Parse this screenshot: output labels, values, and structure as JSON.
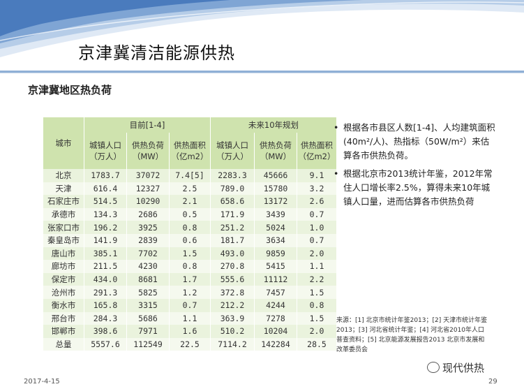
{
  "slide": {
    "title": "京津冀清洁能源供热",
    "subtitle": "京津冀地区热负荷",
    "footer_date": "2017-4-15",
    "page_number": "29",
    "watermark": "现代供热"
  },
  "table": {
    "group_current": "目前[1-4]",
    "group_future": "未来10年规划",
    "col_city": "城市",
    "col_pop": "城镇人口（万人）",
    "col_load": "供热负荷（MW）",
    "col_area": "供热面积（亿m2）",
    "rows": [
      {
        "city": "北京",
        "pop": "1783.7",
        "load": "37072",
        "area": "7.4[5]",
        "fpop": "2283.3",
        "fload": "45666",
        "farea": "9.1"
      },
      {
        "city": "天津",
        "pop": "616.4",
        "load": "12327",
        "area": "2.5",
        "fpop": "789.0",
        "fload": "15780",
        "farea": "3.2"
      },
      {
        "city": "石家庄市",
        "pop": "514.5",
        "load": "10290",
        "area": "2.1",
        "fpop": "658.6",
        "fload": "13172",
        "farea": "2.6"
      },
      {
        "city": "承德市",
        "pop": "134.3",
        "load": "2686",
        "area": "0.5",
        "fpop": "171.9",
        "fload": "3439",
        "farea": "0.7"
      },
      {
        "city": "张家口市",
        "pop": "196.2",
        "load": "3925",
        "area": "0.8",
        "fpop": "251.2",
        "fload": "5024",
        "farea": "1.0"
      },
      {
        "city": "秦皇岛市",
        "pop": "141.9",
        "load": "2839",
        "area": "0.6",
        "fpop": "181.7",
        "fload": "3634",
        "farea": "0.7"
      },
      {
        "city": "唐山市",
        "pop": "385.1",
        "load": "7702",
        "area": "1.5",
        "fpop": "493.0",
        "fload": "9859",
        "farea": "2.0"
      },
      {
        "city": "廊坊市",
        "pop": "211.5",
        "load": "4230",
        "area": "0.8",
        "fpop": "270.8",
        "fload": "5415",
        "farea": "1.1"
      },
      {
        "city": "保定市",
        "pop": "434.0",
        "load": "8681",
        "area": "1.7",
        "fpop": "555.6",
        "fload": "11112",
        "farea": "2.2"
      },
      {
        "city": "沧州市",
        "pop": "291.3",
        "load": "5825",
        "area": "1.2",
        "fpop": "372.8",
        "fload": "7457",
        "farea": "1.5"
      },
      {
        "city": "衡水市",
        "pop": "165.8",
        "load": "3315",
        "area": "0.7",
        "fpop": "212.2",
        "fload": "4244",
        "farea": "0.8"
      },
      {
        "city": "邢台市",
        "pop": "284.3",
        "load": "5686",
        "area": "1.1",
        "fpop": "363.9",
        "fload": "7278",
        "farea": "1.5"
      },
      {
        "city": "邯郸市",
        "pop": "398.6",
        "load": "7971",
        "area": "1.6",
        "fpop": "510.2",
        "fload": "10204",
        "farea": "2.0"
      },
      {
        "city": "总量",
        "pop": "5557.6",
        "load": "112549",
        "area": "22.5",
        "fpop": "7114.2",
        "fload": "142284",
        "farea": "28.5"
      }
    ]
  },
  "bullets": [
    "根据各市县区人数[1-4]、人均建筑面积(40m²/人)、热指标（50W/m²）来估算各市供热负荷。",
    "根据北京市2013统计年鉴，2012年常住人口增长率2.5%，算得未来10年城镇人口量，进而估算各市供热负荷"
  ],
  "note": "来源：[1] 北京市统计年鉴2013；[2] 天津市统计年鉴2013；[3] 河北省统计年鉴；[4] 河北省2010年人口普查资料；[5] 北京能源发展报告2013 北京市发展和改革委员会"
}
